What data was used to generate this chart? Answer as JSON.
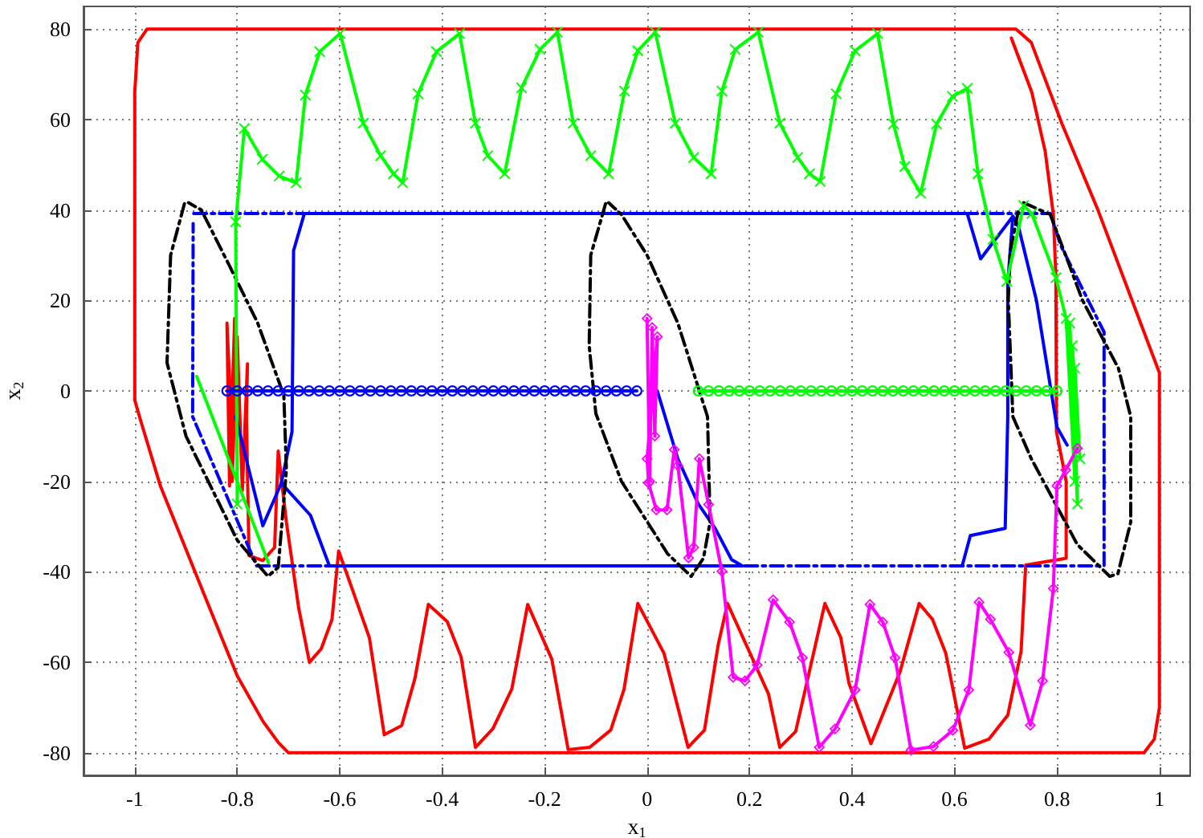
{
  "chart_data": {
    "type": "line",
    "xlabel": "x$_{1}$",
    "ylabel": "x$_{2}$",
    "xlim": [
      -1.1,
      1.06
    ],
    "ylim": [
      -85,
      85
    ],
    "xticks": [
      -1,
      -0.8,
      -0.6,
      -0.4,
      -0.2,
      0,
      0.2,
      0.4,
      0.6,
      0.8,
      1
    ],
    "yticks": [
      -80,
      -60,
      -40,
      -20,
      0,
      20,
      40,
      60,
      80
    ],
    "grid": true,
    "series": [
      {
        "color": "#ff0000",
        "marker": "none",
        "line_style": "solid",
        "x": [
          -0.9,
          -0.976,
          -0.994,
          -1.0,
          -1.0,
          -0.99,
          -0.95,
          -0.866,
          -0.8,
          -0.75,
          -0.72,
          -0.7,
          0.97,
          0.99,
          1.0,
          1.0,
          0.88,
          0.81,
          0.75,
          0.72,
          -0.95
        ],
        "values": [
          80,
          80,
          77,
          66,
          -2,
          -6,
          -21,
          -44.6,
          -63,
          -73,
          -77.7,
          -80,
          -80,
          -77,
          -70,
          4,
          40,
          59,
          77,
          80,
          80
        ]
      },
      {
        "color": "#ff0000",
        "marker": "none",
        "line_style": "solid",
        "x": [
          0.711,
          0.751,
          0.777,
          0.793,
          0.798,
          0.799,
          0.818,
          0.818,
          0.739,
          0.73,
          0.704,
          0.667,
          0.62,
          0.583,
          0.557,
          0.531,
          0.494,
          0.437,
          0.394,
          0.378,
          0.347,
          0.29,
          0.259,
          0.237,
          0.157,
          0.139,
          0.112,
          0.08,
          0.033,
          -0.018,
          -0.045,
          -0.071,
          -0.112,
          -0.154,
          -0.186,
          -0.233,
          -0.264,
          -0.301,
          -0.335,
          -0.363,
          -0.39,
          -0.427,
          -0.453,
          -0.479,
          -0.513,
          -0.542,
          -0.573,
          -0.602,
          -0.615,
          -0.636,
          -0.659,
          -0.68,
          -0.704,
          -0.72,
          -0.727,
          -0.75,
          -0.777,
          -0.782,
          -0.78,
          -0.79,
          -0.8,
          -0.81,
          -0.805,
          -0.815,
          -0.82,
          -0.81
        ],
        "values": [
          78,
          66,
          53,
          39,
          25,
          -9,
          -20,
          -37,
          -38.5,
          -57.6,
          -71.7,
          -77,
          -79,
          -58,
          -50.5,
          -47,
          -62,
          -78,
          -64.6,
          -54.5,
          -47,
          -75.3,
          -78.8,
          -67,
          -47,
          -56,
          -75,
          -78.8,
          -58,
          -47,
          -66,
          -75,
          -78.8,
          -79.3,
          -59.3,
          -47.2,
          -65.9,
          -74.7,
          -78.8,
          -58.8,
          -51,
          -47.2,
          -63.5,
          -74,
          -76,
          -54.6,
          -44.6,
          -35.4,
          -50.5,
          -57,
          -60,
          -48,
          -29,
          -13.3,
          -34.6,
          -37.5,
          -36.4,
          -5.7,
          6,
          -22,
          12,
          -20,
          16,
          -21,
          15,
          -10
        ]
      },
      {
        "color": "#0000ff",
        "marker": "none",
        "line_style": "solid",
        "x": [
          -0.803,
          -0.75,
          -0.714,
          -0.693,
          -0.69,
          -0.669,
          0.625,
          0.651,
          0.714,
          0.725,
          0.76,
          0.8,
          0.82
        ],
        "values": [
          -5.7,
          -29.8,
          -20.4,
          -9,
          31,
          39.2,
          39.2,
          29.2,
          38.6,
          36.3,
          20,
          -8,
          -12
        ]
      },
      {
        "color": "#0000ff",
        "marker": "none",
        "line_style": "solid",
        "x": [
          0.02,
          0.06,
          0.1,
          0.133,
          0.165,
          0.186,
          -0.62,
          -0.657,
          -0.714
        ],
        "values": [
          0,
          -15,
          -25,
          -30.4,
          -37.3,
          -38.7,
          -38.7,
          -27.5,
          -20.4
        ]
      },
      {
        "color": "#0000ff",
        "marker": "none",
        "line_style": "solid",
        "x": [
          0.615,
          0.631,
          0.699,
          0.704,
          0.704,
          0.714
        ],
        "values": [
          -38.7,
          -32,
          -30.4,
          -5.7,
          23.8,
          38.6
        ]
      },
      {
        "color": "#0000ff",
        "marker": "none",
        "line_style": "dashed",
        "x": [
          -0.885,
          0.787,
          0.808,
          0.892,
          0.892,
          -0.762,
          -0.887,
          -0.886
        ],
        "values": [
          39.2,
          39.2,
          32,
          13,
          -38.7,
          -38.7,
          -5.7,
          37
        ]
      },
      {
        "color": "#000000",
        "marker": "none",
        "line_style": "dashed",
        "x": [
          -0.903,
          -0.93,
          -0.937,
          -0.9,
          -0.8,
          -0.74,
          -0.72,
          -0.704,
          -0.709,
          -0.76,
          -0.814,
          -0.87,
          -0.895
        ],
        "values": [
          41.4,
          30,
          6.2,
          -10,
          -33,
          -41,
          -39,
          -17.5,
          -1,
          15,
          27.4,
          40,
          41.6
        ]
      },
      {
        "color": "#000000",
        "marker": "none",
        "line_style": "dashed",
        "x": [
          -0.081,
          -0.11,
          -0.113,
          -0.1,
          -0.05,
          0.04,
          0.086,
          0.11,
          0.123,
          0.118,
          0.06,
          0.0,
          -0.05,
          -0.075
        ],
        "values": [
          41.4,
          30,
          10,
          -5,
          -20,
          -36,
          -41,
          -37,
          -29,
          -5.7,
          15,
          30,
          39,
          41.6
        ]
      },
      {
        "color": "#000000",
        "marker": "none",
        "line_style": "dashed",
        "x": [
          0.735,
          0.787,
          0.85,
          0.92,
          0.944,
          0.944,
          0.919,
          0.903,
          0.84,
          0.75,
          0.714,
          0.705,
          0.709,
          0.725
        ],
        "values": [
          41.6,
          39,
          20,
          5,
          -5.7,
          -29,
          -40.4,
          -41,
          -34,
          -15,
          -5.7,
          20,
          31,
          40
        ]
      },
      {
        "color": "#00ff00",
        "marker": "none",
        "line_style": "solid",
        "x": [
          -0.879,
          -0.739
        ],
        "values": [
          3.2,
          -38
        ]
      },
      {
        "color": "#00ff00",
        "marker": "cross",
        "line_style": "solid",
        "x": [
          -0.8,
          -0.803,
          -0.786,
          -0.751,
          -0.718,
          -0.685,
          -0.667,
          -0.639,
          -0.599,
          -0.554,
          -0.52,
          -0.495,
          -0.477,
          -0.447,
          -0.411,
          -0.366,
          -0.335,
          -0.311,
          -0.278,
          -0.245,
          -0.209,
          -0.175,
          -0.144,
          -0.11,
          -0.075,
          -0.044,
          -0.018,
          0.016,
          0.055,
          0.091,
          0.125,
          0.146,
          0.172,
          0.217,
          0.259,
          0.294,
          0.317,
          0.338,
          0.369,
          0.406,
          0.45,
          0.481,
          0.503,
          0.534,
          0.565,
          0.596,
          0.625,
          0.646,
          0.675,
          0.702,
          0.735,
          0.751,
          0.798,
          0.818,
          0.835,
          0.825,
          0.84,
          0.83,
          0.845,
          0.835
        ],
        "values": [
          -25,
          37.4,
          58,
          51.2,
          47.5,
          46,
          65.4,
          75,
          79,
          59.2,
          52,
          48,
          46,
          65.7,
          75,
          79,
          59.2,
          52,
          48,
          67,
          75.5,
          79.3,
          59.2,
          52,
          48,
          66.3,
          75.2,
          79.3,
          59.2,
          51.6,
          48,
          66.3,
          75.5,
          79.3,
          59.2,
          51.6,
          48,
          46.3,
          65.7,
          75.2,
          79,
          59,
          49.6,
          43.7,
          59,
          65.1,
          66.9,
          48,
          33.5,
          24.2,
          41,
          39.2,
          25,
          16,
          -20,
          15,
          -25,
          10,
          -15,
          5
        ]
      },
      {
        "color": "#0000ff",
        "marker": "circle",
        "line_style": "solid",
        "x": [
          -0.82,
          -0.8,
          -0.78,
          -0.76,
          -0.74,
          -0.72,
          -0.7,
          -0.68,
          -0.66,
          -0.64,
          -0.62,
          -0.6,
          -0.58,
          -0.56,
          -0.54,
          -0.52,
          -0.5,
          -0.48,
          -0.46,
          -0.44,
          -0.42,
          -0.4,
          -0.38,
          -0.36,
          -0.34,
          -0.32,
          -0.3,
          -0.28,
          -0.26,
          -0.24,
          -0.22,
          -0.2,
          -0.18,
          -0.16,
          -0.14,
          -0.12,
          -0.1,
          -0.08,
          -0.06,
          -0.04,
          -0.02
        ],
        "values": [
          0,
          0,
          0,
          0,
          0,
          0,
          0,
          0,
          0,
          0,
          0,
          0,
          0,
          0,
          0,
          0,
          0,
          0,
          0,
          0,
          0,
          0,
          0,
          0,
          0,
          0,
          0,
          0,
          0,
          0,
          0,
          0,
          0,
          0,
          0,
          0,
          0,
          0,
          0,
          0,
          0
        ]
      },
      {
        "color": "#00ff00",
        "marker": "circle",
        "line_style": "solid",
        "x": [
          0.1,
          0.12,
          0.14,
          0.16,
          0.18,
          0.2,
          0.22,
          0.24,
          0.26,
          0.28,
          0.3,
          0.32,
          0.34,
          0.36,
          0.38,
          0.4,
          0.42,
          0.44,
          0.46,
          0.48,
          0.5,
          0.52,
          0.54,
          0.56,
          0.58,
          0.6,
          0.62,
          0.64,
          0.66,
          0.68,
          0.7,
          0.72,
          0.74,
          0.76,
          0.78,
          0.8
        ],
        "values": [
          0,
          0,
          0,
          0,
          0,
          0,
          0,
          0,
          0,
          0,
          0,
          0,
          0,
          0,
          0,
          0,
          0,
          0,
          0,
          0,
          0,
          0,
          0,
          0,
          0,
          0,
          0,
          0,
          0,
          0,
          0,
          0,
          0,
          0,
          0,
          0
        ]
      },
      {
        "color": "#ff00ff",
        "marker": "diamond",
        "line_style": "solid",
        "x": [
          0.0,
          0.005,
          0.01,
          0.015,
          0.02,
          0.0,
          0.003,
          0.018,
          0.039,
          0.053,
          0.06,
          0.081,
          0.091,
          0.102,
          0.12,
          0.146,
          0.168,
          0.191,
          0.215,
          0.246,
          0.278,
          0.303,
          0.336,
          0.367,
          0.406,
          0.435,
          0.46,
          0.484,
          0.515,
          0.559,
          0.597,
          0.628,
          0.648,
          0.67,
          0.706,
          0.748,
          0.772,
          0.793,
          0.8,
          0.817,
          0.84
        ],
        "values": [
          16,
          -20,
          14,
          -10,
          12,
          -15,
          -20.4,
          -26.3,
          -26.3,
          -13,
          -16.5,
          -36.9,
          -34.6,
          -15,
          -25.1,
          -39.9,
          -63.3,
          -64.1,
          -60.6,
          -46.2,
          -51.1,
          -59,
          -78.8,
          -74.7,
          -66.1,
          -47.2,
          -51.1,
          -59,
          -79.4,
          -78.6,
          -75,
          -66.1,
          -46.7,
          -50.5,
          -57.8,
          -73.9,
          -64.1,
          -43.7,
          -21,
          -17.5,
          -12.7
        ]
      }
    ]
  }
}
